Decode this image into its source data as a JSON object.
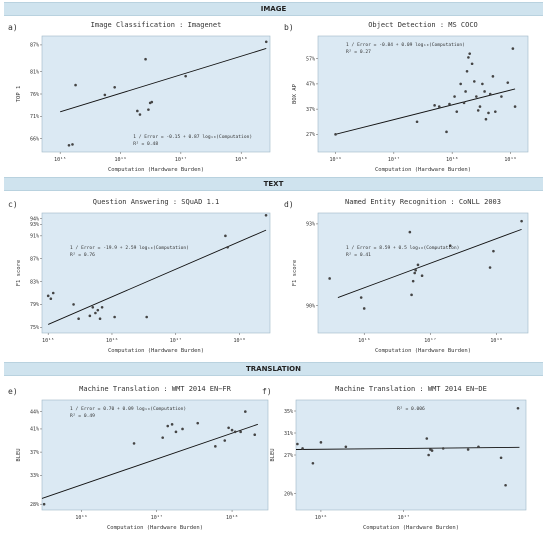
{
  "sections": [
    {
      "label": "IMAGE"
    },
    {
      "label": "TEXT"
    },
    {
      "label": "TRANSLATION"
    }
  ],
  "colors": {
    "panel_bg": "#dbe9f3",
    "point": "#444444",
    "line": "#111111",
    "band_bg": "#cfe3ee"
  },
  "chart_data": [
    {
      "letter": "a)",
      "title": "Image Classification : Imagenet",
      "type": "scatter",
      "xlabel": "Computation (Hardware Burden)",
      "ylabel": "TOP 1",
      "x_scale": "log",
      "xlim": [
        500000000000000.0,
        3e+18
      ],
      "ylim": [
        63,
        89
      ],
      "x_ticks": [
        {
          "value": 1000000000000000.0,
          "label": "10¹⁵"
        },
        {
          "value": 1e+16,
          "label": "10¹⁶"
        },
        {
          "value": 1e+17,
          "label": "10¹⁷"
        },
        {
          "value": 1e+18,
          "label": "10¹⁸"
        }
      ],
      "y_ticks": [
        {
          "value": 66,
          "label": "66%"
        },
        {
          "value": 71,
          "label": "71%"
        },
        {
          "value": 76,
          "label": "76%"
        },
        {
          "value": 81,
          "label": "81%"
        },
        {
          "value": 87,
          "label": "87%"
        }
      ],
      "annotation": [
        "1 / Error = -0.15 + 0.87 log₁₀(Computation)",
        "R² = 0.48"
      ],
      "annotation_pos": "bottom-right",
      "fit": [
        [
          1000000000000000.0,
          72.0
        ],
        [
          2.6e+18,
          86.2
        ]
      ],
      "points": [
        [
          1400000000000000.0,
          64.5
        ],
        [
          1600000000000000.0,
          64.7
        ],
        [
          1800000000000000.0,
          78.0
        ],
        [
          5500000000000000.0,
          75.8
        ],
        [
          8000000000000000.0,
          77.5
        ],
        [
          1.9e+16,
          72.2
        ],
        [
          2.1e+16,
          71.4
        ],
        [
          2.6e+16,
          83.8
        ],
        [
          2.9e+16,
          72.5
        ],
        [
          3.1e+16,
          74.0
        ],
        [
          3.3e+16,
          74.2
        ],
        [
          1.2e+17,
          80.0
        ],
        [
          2.6e+18,
          87.7
        ]
      ]
    },
    {
      "letter": "b)",
      "title": "Object Detection : MS COCO",
      "type": "scatter",
      "xlabel": "Computation (Hardware Burden)",
      "ylabel": "BOX AP",
      "x_scale": "log",
      "xlim": [
        5000000000000000.0,
        2e+19
      ],
      "ylim": [
        20,
        66
      ],
      "x_ticks": [
        {
          "value": 1e+16,
          "label": "10¹⁶"
        },
        {
          "value": 1e+17,
          "label": "10¹⁷"
        },
        {
          "value": 1e+18,
          "label": "10¹⁸"
        },
        {
          "value": 1e+19,
          "label": "10¹⁹"
        }
      ],
      "y_ticks": [
        {
          "value": 27,
          "label": "27%"
        },
        {
          "value": 37,
          "label": "37%"
        },
        {
          "value": 47,
          "label": "47%"
        },
        {
          "value": 57,
          "label": "57%"
        }
      ],
      "annotation": [
        "1 / Error = -0.84 + 0.09 log₁₀(Computation)",
        "R² = 0.27"
      ],
      "annotation_pos": "top-left",
      "fit": [
        [
          1e+16,
          27.0
        ],
        [
          1.2e+19,
          45.0
        ]
      ],
      "points": [
        [
          1e+16,
          27.0
        ],
        [
          2.5e+17,
          32.0
        ],
        [
          5e+17,
          38.5
        ],
        [
          6e+17,
          38.0
        ],
        [
          8e+17,
          28.0
        ],
        [
          9e+17,
          39.0
        ],
        [
          1.1e+18,
          42.0
        ],
        [
          1.2e+18,
          36.0
        ],
        [
          1.4e+18,
          47.0
        ],
        [
          1.6e+18,
          39.5
        ],
        [
          1.7e+18,
          44.0
        ],
        [
          1.8e+18,
          52.0
        ],
        [
          1.9e+18,
          57.5
        ],
        [
          2e+18,
          59.0
        ],
        [
          2.2e+18,
          55.0
        ],
        [
          2.4e+18,
          48.0
        ],
        [
          2.6e+18,
          42.0
        ],
        [
          2.8e+18,
          36.5
        ],
        [
          3e+18,
          38.0
        ],
        [
          3.3e+18,
          47.0
        ],
        [
          3.6e+18,
          44.0
        ],
        [
          3.8e+18,
          33.0
        ],
        [
          4.2e+18,
          35.5
        ],
        [
          4.5e+18,
          43.0
        ],
        [
          5e+18,
          50.0
        ],
        [
          5.5e+18,
          36.0
        ],
        [
          7e+18,
          42.0
        ],
        [
          9e+18,
          47.5
        ],
        [
          1.1e+19,
          61.0
        ],
        [
          1.2e+19,
          38.0
        ]
      ]
    },
    {
      "letter": "c)",
      "title": "Question Answering : SQuAD 1.1",
      "type": "scatter",
      "xlabel": "Computation (Hardware Burden)",
      "ylabel": "F1 score",
      "x_scale": "log",
      "xlim": [
        800000000000000.0,
        3e+18
      ],
      "ylim": [
        74,
        95
      ],
      "x_ticks": [
        {
          "value": 1000000000000000.0,
          "label": "10¹⁵"
        },
        {
          "value": 1e+16,
          "label": "10¹⁶"
        },
        {
          "value": 1e+17,
          "label": "10¹⁷"
        },
        {
          "value": 1e+18,
          "label": "10¹⁸"
        }
      ],
      "y_ticks": [
        {
          "value": 75,
          "label": "75%"
        },
        {
          "value": 79,
          "label": "79%"
        },
        {
          "value": 83,
          "label": "83%"
        },
        {
          "value": 87,
          "label": "87%"
        },
        {
          "value": 91,
          "label": "91%"
        },
        {
          "value": 93,
          "label": "93%"
        },
        {
          "value": 94,
          "label": "94%"
        }
      ],
      "annotation": [
        "1 / Error = -19.9 + 2.59 log₁₀(Computation)",
        "R² = 0.76"
      ],
      "annotation_pos": "top-left",
      "fit": [
        [
          1000000000000000.0,
          75.5
        ],
        [
          2.6e+18,
          92.0
        ]
      ],
      "points": [
        [
          1000000000000000.0,
          80.5
        ],
        [
          1100000000000000.0,
          80.0
        ],
        [
          1200000000000000.0,
          81.0
        ],
        [
          2500000000000000.0,
          79.0
        ],
        [
          3000000000000000.0,
          76.5
        ],
        [
          4500000000000000.0,
          77.0
        ],
        [
          5000000000000000.0,
          78.5
        ],
        [
          5500000000000000.0,
          77.5
        ],
        [
          6000000000000000.0,
          78.0
        ],
        [
          6500000000000000.0,
          76.5
        ],
        [
          7000000000000000.0,
          78.5
        ],
        [
          1.1e+16,
          76.8
        ],
        [
          3.5e+16,
          76.8
        ],
        [
          6e+17,
          91.0
        ],
        [
          6.5e+17,
          89.0
        ],
        [
          2.6e+18,
          94.6
        ]
      ]
    },
    {
      "letter": "d)",
      "title": "Named Entity Recognition : CoNLL 2003",
      "type": "scatter",
      "xlabel": "Computation (Hardware Burden)",
      "ylabel": "F1 score",
      "x_scale": "log",
      "xlim": [
        2000000000000000.0,
        3e+18
      ],
      "ylim": [
        89.0,
        93.4
      ],
      "x_ticks": [
        {
          "value": 1e+16,
          "label": "10¹⁶"
        },
        {
          "value": 1e+17,
          "label": "10¹⁷"
        },
        {
          "value": 1e+18,
          "label": "10¹⁸"
        }
      ],
      "y_ticks": [
        {
          "value": 90,
          "label": "90%"
        },
        {
          "value": 93,
          "label": "93%"
        }
      ],
      "annotation": [
        "1 / Error = 8.59 + 0.5 log₁₀(Computation)",
        "R² = 0.41"
      ],
      "annotation_pos": "top-left",
      "fit": [
        [
          4000000000000000.0,
          90.3
        ],
        [
          2.4e+18,
          92.8
        ]
      ],
      "points": [
        [
          3000000000000000.0,
          91.0
        ],
        [
          9000000000000000.0,
          90.3
        ],
        [
          1e+16,
          89.9
        ],
        [
          4.9e+16,
          92.7
        ],
        [
          5.2e+16,
          90.4
        ],
        [
          5.5e+16,
          90.9
        ],
        [
          5.8e+16,
          91.2
        ],
        [
          6e+16,
          91.3
        ],
        [
          6.5e+16,
          91.5
        ],
        [
          7.5e+16,
          91.1
        ],
        [
          2e+17,
          92.2
        ],
        [
          8e+17,
          91.4
        ],
        [
          9e+17,
          92.0
        ],
        [
          2.4e+18,
          93.1
        ]
      ]
    },
    {
      "letter": "e)",
      "title": "Machine Translation : WMT 2014 EN−FR",
      "type": "scatter",
      "xlabel": "Computation (Hardware Burden)",
      "ylabel": "BLEU",
      "x_scale": "log",
      "xlim": [
        3000000000000000.0,
        3e+18
      ],
      "ylim": [
        27,
        46
      ],
      "x_ticks": [
        {
          "value": 1e+16,
          "label": "10¹⁶"
        },
        {
          "value": 1e+17,
          "label": "10¹⁷"
        },
        {
          "value": 1e+18,
          "label": "10¹⁸"
        }
      ],
      "y_ticks": [
        {
          "value": 28,
          "label": "28%"
        },
        {
          "value": 33,
          "label": "33%"
        },
        {
          "value": 37,
          "label": "37%"
        },
        {
          "value": 41,
          "label": "41%"
        },
        {
          "value": 44,
          "label": "44%"
        }
      ],
      "annotation": [
        "1 / Error = 0.70 + 0.09 log₁₀(Computation)",
        "R² = 0.49"
      ],
      "annotation_pos": "top-left",
      "fit": [
        [
          3000000000000000.0,
          29.0
        ],
        [
          2.2e+18,
          41.8
        ]
      ],
      "points": [
        [
          3200000000000000.0,
          28.0
        ],
        [
          5e+16,
          38.5
        ],
        [
          1.2e+17,
          39.5
        ],
        [
          1.4e+17,
          41.5
        ],
        [
          1.6e+17,
          41.8
        ],
        [
          1.8e+17,
          40.5
        ],
        [
          2.2e+17,
          41.0
        ],
        [
          3.5e+17,
          42.0
        ],
        [
          6e+17,
          38.0
        ],
        [
          8e+17,
          39.0
        ],
        [
          9e+17,
          41.2
        ],
        [
          1e+18,
          40.8
        ],
        [
          1.1e+18,
          40.5
        ],
        [
          1.3e+18,
          40.5
        ],
        [
          1.5e+18,
          44.0
        ],
        [
          2e+18,
          40.0
        ]
      ]
    },
    {
      "letter": "f)",
      "title": "Machine Translation : WMT 2014 EN−DE",
      "type": "scatter",
      "xlabel": "Computation (Hardware Burden)",
      "ylabel": "BLEU",
      "x_scale": "log",
      "xlim": [
        5000000000000000.0,
        3e+18
      ],
      "ylim": [
        17,
        37
      ],
      "x_ticks": [
        {
          "value": 1e+16,
          "label": "10¹⁶"
        },
        {
          "value": 1e+17,
          "label": "10¹⁷"
        }
      ],
      "y_ticks": [
        {
          "value": 20,
          "label": "20%"
        },
        {
          "value": 27,
          "label": "27%"
        },
        {
          "value": 31,
          "label": "31%"
        },
        {
          "value": 35,
          "label": "35%"
        }
      ],
      "annotation": [
        "R² = 0.006"
      ],
      "annotation_pos": "top-center",
      "fit": [
        [
          5000000000000000.0,
          28.0
        ],
        [
          2.5e+18,
          28.4
        ]
      ],
      "points": [
        [
          5200000000000000.0,
          29.0
        ],
        [
          6000000000000000.0,
          28.2
        ],
        [
          8000000000000000.0,
          25.5
        ],
        [
          1e+16,
          29.3
        ],
        [
          2e+16,
          28.5
        ],
        [
          1.9e+17,
          30.0
        ],
        [
          2e+17,
          27.0
        ],
        [
          2.1e+17,
          28.0
        ],
        [
          2.2e+17,
          27.8
        ],
        [
          3e+17,
          28.2
        ],
        [
          6e+17,
          28.0
        ],
        [
          8e+17,
          28.5
        ],
        [
          1.5e+18,
          26.5
        ],
        [
          1.7e+18,
          21.5
        ],
        [
          2.4e+18,
          35.5
        ]
      ]
    }
  ]
}
